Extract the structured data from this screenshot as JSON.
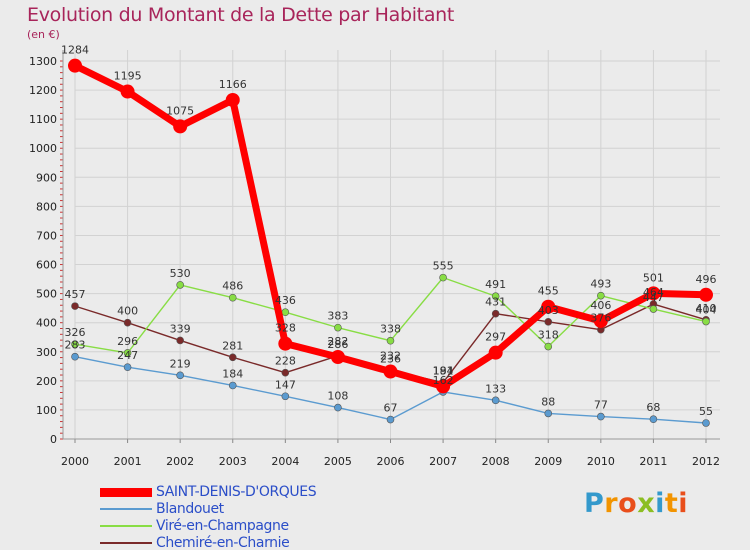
{
  "title": "Evolution du Montant de la Dette par Habitant",
  "unit": "(en €)",
  "logo": {
    "letters": [
      "P",
      "r",
      "o",
      "x",
      "i",
      "t",
      "i"
    ],
    "colors": [
      "#3399cc",
      "#f29400",
      "#e94e1b",
      "#8cbe22",
      "#3399cc",
      "#f29400",
      "#e94e1b"
    ]
  },
  "chart_data": {
    "type": "line",
    "title": "Evolution du Montant de la Dette par Habitant",
    "ylabel": "(en €)",
    "categories": [
      "2000",
      "2001",
      "2002",
      "2003",
      "2004",
      "2005",
      "2006",
      "2007",
      "2008",
      "2009",
      "2010",
      "2011",
      "2012"
    ],
    "ylim": [
      0,
      1300
    ],
    "yticks": [
      0,
      100,
      200,
      300,
      400,
      500,
      600,
      700,
      800,
      900,
      1000,
      1100,
      1200,
      1300
    ],
    "grid": true,
    "legend_position": "bottom-left",
    "series": [
      {
        "name": "SAINT-DENIS-D'ORQUES",
        "color": "#ff0000",
        "values": [
          1284,
          1195,
          1075,
          1166,
          328,
          282,
          232,
          181,
          297,
          455,
          406,
          501,
          496
        ],
        "labels": [
          "1284",
          "1195",
          "1075",
          "1166",
          "328",
          "282",
          "232",
          "181",
          "297",
          "455",
          "406",
          "501",
          "496"
        ]
      },
      {
        "name": "Blandouet",
        "color": "#5b9bd0",
        "values": [
          283,
          247,
          219,
          184,
          147,
          108,
          67,
          162,
          133,
          88,
          77,
          68,
          55
        ],
        "labels": [
          "283",
          "247",
          "219",
          "184",
          "147",
          "108",
          "67",
          "162",
          "133",
          "88",
          "77",
          "68",
          "55"
        ]
      },
      {
        "name": "Viré-en-Champagne",
        "color": "#88dd44",
        "values": [
          326,
          296,
          530,
          486,
          436,
          383,
          338,
          555,
          491,
          318,
          493,
          447,
          404
        ],
        "labels": [
          "326",
          "296",
          "530",
          "486",
          "436",
          "383",
          "338",
          "555",
          "491",
          "318",
          "493",
          "447",
          "404"
        ]
      },
      {
        "name": "Chemiré-en-Charnie",
        "color": "#7a2a2a",
        "values": [
          457,
          400,
          339,
          281,
          228,
          286,
          236,
          194,
          431,
          403,
          376,
          464,
          410
        ],
        "labels": [
          "457",
          "400",
          "339",
          "281",
          "228",
          "286",
          "236",
          "194",
          "431",
          "403",
          "376",
          "464",
          "410"
        ]
      }
    ]
  }
}
